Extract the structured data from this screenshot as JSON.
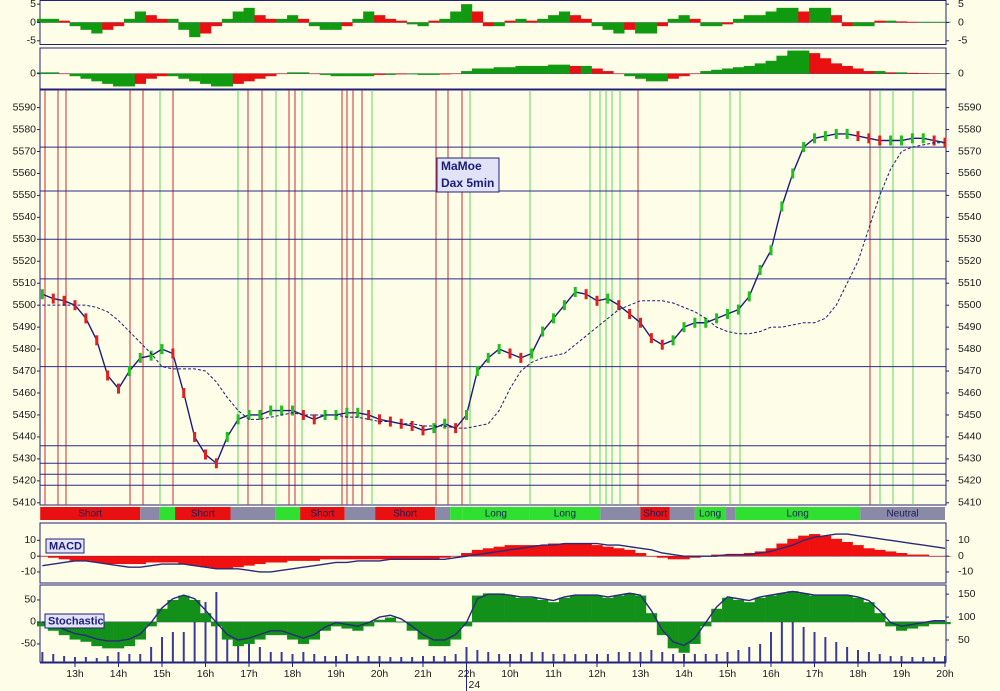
{
  "chart_data": [
    {
      "type": "bar",
      "ylim": [
        -6,
        6
      ],
      "yticks": [
        -5,
        0,
        5
      ],
      "series": [
        {
          "up_color": "#109a10",
          "down_color": "#e81010",
          "values": [
            1,
            1,
            0.5,
            -1,
            -2,
            -3,
            -2,
            -1,
            1,
            3,
            2,
            1,
            1,
            -2,
            -4,
            -3,
            -1,
            1,
            3,
            4,
            2,
            1,
            1,
            2,
            1,
            -1,
            -2,
            -2,
            -1,
            1,
            3,
            2,
            1,
            0.5,
            -0.5,
            -1,
            0.5,
            1,
            3,
            5,
            3,
            -1,
            -1,
            0.5,
            1,
            0.5,
            1,
            2,
            3,
            2,
            1,
            -1,
            -2,
            -3,
            -2,
            -3,
            -3,
            -1,
            1,
            2,
            1,
            -1,
            -1,
            -0.5,
            1,
            2,
            2,
            3,
            4,
            4,
            3,
            4,
            4,
            2,
            -1,
            -1,
            -1,
            0.5,
            0.5,
            0.3,
            0.2,
            0.2,
            0.2,
            0.2
          ]
        }
      ]
    },
    {
      "type": "bar",
      "ylim": [
        -6,
        10
      ],
      "yticks": [
        0
      ],
      "series": [
        {
          "up_color": "#109a10",
          "down_color": "#e81010",
          "values": [
            0.5,
            0.5,
            0,
            -1,
            -2,
            -3,
            -4,
            -5,
            -5,
            -4,
            -2,
            -1,
            -1,
            -2,
            -3,
            -4,
            -5,
            -5,
            -4,
            -3,
            -2,
            -1,
            0,
            0.5,
            0.5,
            0,
            -0.5,
            -1,
            -1,
            -1,
            -1,
            -0.5,
            -0.5,
            -0.3,
            -0.3,
            -0.5,
            -0.5,
            -0.3,
            0,
            1,
            2,
            2,
            2.5,
            2.5,
            3,
            3,
            3,
            3.5,
            3.5,
            3,
            3,
            2,
            1,
            0,
            -1,
            -2,
            -3,
            -3,
            -2,
            -1,
            0,
            1,
            1.5,
            2,
            2.5,
            3,
            4,
            5,
            7,
            9,
            9,
            8,
            6,
            4,
            3,
            2,
            1,
            1,
            0.5,
            0.5,
            0.3,
            0.2,
            0.1,
            0.1
          ]
        }
      ]
    },
    {
      "type": "line",
      "title": "MaMoe",
      "subtitle": "Dax 5min",
      "ylim": [
        5409,
        5598
      ],
      "yticks": [
        5410,
        5420,
        5430,
        5440,
        5450,
        5460,
        5470,
        5480,
        5490,
        5500,
        5510,
        5520,
        5530,
        5540,
        5550,
        5560,
        5570,
        5580,
        5590
      ],
      "levels": [
        5572,
        5552,
        5530,
        5512,
        5472,
        5436,
        5428,
        5423,
        5418
      ],
      "level_color": "#2a2a8a",
      "series": [
        {
          "color": "#1c1c7a",
          "up_color": "#20c020",
          "down_color": "#e02020",
          "markers": true,
          "values": [
            5505,
            5503,
            5502,
            5500,
            5494,
            5484,
            5468,
            5462,
            5470,
            5476,
            5477,
            5480,
            5478,
            5460,
            5440,
            5432,
            5428,
            5440,
            5448,
            5450,
            5450,
            5452,
            5452,
            5452,
            5450,
            5448,
            5450,
            5450,
            5451,
            5451,
            5450,
            5448,
            5447,
            5446,
            5445,
            5443,
            5444,
            5446,
            5444,
            5450,
            5470,
            5476,
            5480,
            5478,
            5476,
            5478,
            5488,
            5494,
            5500,
            5506,
            5505,
            5502,
            5503,
            5500,
            5496,
            5492,
            5485,
            5482,
            5484,
            5490,
            5492,
            5492,
            5494,
            5496,
            5498,
            5504,
            5516,
            5525,
            5545,
            5560,
            5572,
            5576,
            5577,
            5578,
            5578,
            5577,
            5576,
            5575,
            5575,
            5575,
            5576,
            5576,
            5575,
            5574
          ]
        },
        {
          "color": "#1c1c7a",
          "dash": true,
          "values": [
            5500,
            5500,
            5500,
            5500,
            5500,
            5499,
            5497,
            5493,
            5488,
            5483,
            5478,
            5472,
            5471,
            5471,
            5471,
            5470,
            5465,
            5458,
            5452,
            5448,
            5448,
            5449,
            5450,
            5451,
            5450,
            5450,
            5450,
            5450,
            5449,
            5449,
            5448,
            5447,
            5447,
            5446,
            5446,
            5445,
            5445,
            5445,
            5444,
            5444,
            5445,
            5446,
            5452,
            5462,
            5470,
            5474,
            5476,
            5477,
            5478,
            5482,
            5486,
            5490,
            5494,
            5498,
            5500,
            5502,
            5502,
            5502,
            5501,
            5499,
            5497,
            5494,
            5490,
            5488,
            5487,
            5487,
            5488,
            5490,
            5490,
            5491,
            5492,
            5492,
            5494,
            5500,
            5510,
            5520,
            5535,
            5550,
            5562,
            5570,
            5572,
            5573,
            5574,
            5574
          ]
        }
      ]
    },
    {
      "type": "band",
      "segments": [
        {
          "label": "Short",
          "color": "#e81010",
          "x": [
            -0.2,
            9.0
          ]
        },
        {
          "color": "#8a8aa8",
          "x": [
            9.0,
            10.8
          ]
        },
        {
          "color": "#30e030",
          "x": [
            10.8,
            12.2
          ]
        },
        {
          "label": "Short",
          "color": "#e81010",
          "x": [
            12.2,
            17.3
          ]
        },
        {
          "color": "#8a8aa8",
          "x": [
            17.3,
            21.4
          ]
        },
        {
          "color": "#30e030",
          "x": [
            21.4,
            23.7
          ]
        },
        {
          "label": "Short",
          "color": "#e81010",
          "x": [
            23.7,
            27.8
          ]
        },
        {
          "color": "#8a8aa8",
          "x": [
            27.8,
            30.6
          ]
        },
        {
          "label": "Short",
          "color": "#e81010",
          "x": [
            30.6,
            36.1
          ]
        },
        {
          "color": "#8a8aa8",
          "x": [
            36.1,
            37.5
          ]
        },
        {
          "color": "#30e030",
          "x": [
            37.5,
            38.6
          ]
        },
        {
          "label": "Long",
          "color": "#30e030",
          "x": [
            38.6,
            44.8
          ]
        },
        {
          "label": "Long",
          "color": "#30e030",
          "x": [
            44.8,
            51.3
          ]
        },
        {
          "color": "#8a8aa8",
          "x": [
            51.3,
            55.0
          ]
        },
        {
          "label": "Short",
          "color": "#e81010",
          "x": [
            55.0,
            57.7
          ]
        },
        {
          "color": "#8a8aa8",
          "x": [
            57.7,
            60.0
          ]
        },
        {
          "label": "Long",
          "color": "#30e030",
          "x": [
            60.0,
            62.8
          ]
        },
        {
          "color": "#8a8aa8",
          "x": [
            62.8,
            63.7
          ]
        },
        {
          "label": "Long",
          "color": "#30e030",
          "x": [
            63.7,
            75.2
          ]
        },
        {
          "label": "Neutral",
          "color": "#8a8aa8",
          "x": [
            75.2,
            83.0
          ]
        }
      ]
    },
    {
      "type": "bar",
      "title": "MACD",
      "ylim": [
        -17,
        21
      ],
      "yticks": [
        -10,
        0,
        10
      ],
      "series": [
        {
          "color": "#f01010",
          "values": [
            0,
            -1,
            -2,
            -3,
            -3,
            -4,
            -5,
            -5,
            -5,
            -5,
            -4,
            -4,
            -4,
            -5,
            -6,
            -7,
            -8,
            -8,
            -7,
            -6,
            -5,
            -4,
            -4,
            -3,
            -3,
            -3,
            -2,
            -2,
            -2,
            -2,
            -2,
            -2,
            -2,
            -2,
            -2,
            -2,
            -2,
            -1,
            0,
            2,
            4,
            5,
            6,
            7,
            7,
            7,
            7,
            8,
            8,
            8,
            8,
            7,
            6,
            5,
            4,
            2,
            0,
            -1,
            -2,
            -2,
            -1,
            0,
            1,
            1,
            1,
            2,
            3,
            5,
            8,
            11,
            13,
            14,
            13,
            11,
            9,
            7,
            5,
            4,
            3,
            2,
            1,
            1,
            0,
            0
          ]
        },
        {
          "type": "line",
          "color": "#2a2a7a",
          "values": [
            -6,
            -5,
            -4,
            -3,
            -3,
            -4,
            -5,
            -6,
            -7,
            -7,
            -6,
            -5,
            -5,
            -5,
            -6,
            -7,
            -8,
            -8,
            -8,
            -9,
            -10,
            -10,
            -9,
            -8,
            -7,
            -6,
            -5,
            -4,
            -4,
            -3,
            -3,
            -3,
            -2,
            -2,
            -2,
            -2,
            -2,
            -2,
            -1,
            0,
            1,
            2,
            3,
            4,
            5,
            6,
            7,
            7,
            8,
            8,
            8,
            8,
            7,
            7,
            6,
            5,
            4,
            2,
            1,
            0,
            0,
            0,
            0,
            1,
            1,
            1,
            2,
            3,
            5,
            7,
            10,
            12,
            13,
            14,
            14,
            13,
            12,
            11,
            10,
            9,
            8,
            7,
            6,
            5
          ]
        }
      ]
    },
    {
      "type": "volume",
      "color": "#3a3a9a",
      "values": [
        10,
        8,
        6,
        5,
        5,
        4,
        6,
        10,
        8,
        8,
        15,
        25,
        30,
        30,
        40,
        60,
        70,
        40,
        30,
        20,
        15,
        10,
        10,
        8,
        10,
        8,
        6,
        6,
        8,
        6,
        6,
        6,
        5,
        5,
        5,
        6,
        6,
        6,
        8,
        15,
        12,
        10,
        8,
        8,
        8,
        10,
        10,
        8,
        8,
        8,
        8,
        8,
        8,
        10,
        10,
        10,
        12,
        10,
        8,
        8,
        8,
        8,
        8,
        10,
        12,
        15,
        18,
        30,
        40,
        40,
        35,
        30,
        25,
        20,
        15,
        12,
        10,
        8,
        6,
        6,
        5,
        5,
        5,
        6
      ]
    },
    {
      "type": "bar",
      "title": "Stochastic",
      "ylim": [
        -91,
        84
      ],
      "yticks": [
        -50,
        0,
        50
      ],
      "y2lim": [
        2,
        170
      ],
      "y2ticks": [
        50,
        100,
        150
      ],
      "date_label": "24",
      "categories": [
        null,
        null,
        null,
        "13h",
        null,
        null,
        null,
        "14h",
        null,
        null,
        null,
        "15h",
        null,
        null,
        null,
        "16h",
        null,
        null,
        null,
        "17h",
        null,
        null,
        null,
        "18h",
        null,
        null,
        null,
        "19h",
        null,
        null,
        null,
        "20h",
        null,
        null,
        null,
        "21h",
        null,
        null,
        null,
        "22h",
        null,
        null,
        null,
        "10h",
        null,
        null,
        null,
        "11h",
        null,
        null,
        null,
        "12h",
        null,
        null,
        null,
        "13h",
        null,
        null,
        null,
        "14h",
        null,
        null,
        null,
        "15h",
        null,
        null,
        null,
        "16h",
        null,
        null,
        null,
        "17h",
        null,
        null,
        null,
        "18h",
        null,
        null,
        null,
        "19h",
        null,
        null,
        null,
        "20h"
      ],
      "series": [
        {
          "color": "#12901a",
          "values": [
            -10,
            -20,
            -30,
            -40,
            -45,
            -55,
            -60,
            -60,
            -55,
            -40,
            -10,
            30,
            50,
            60,
            50,
            20,
            -10,
            -40,
            -55,
            -50,
            -40,
            -30,
            -30,
            -40,
            -50,
            -40,
            -20,
            -10,
            -15,
            -20,
            -10,
            5,
            10,
            0,
            -20,
            -40,
            -55,
            -55,
            -40,
            -10,
            60,
            65,
            65,
            60,
            55,
            55,
            50,
            45,
            55,
            60,
            60,
            60,
            55,
            60,
            65,
            60,
            20,
            -30,
            -60,
            -70,
            -50,
            -10,
            30,
            55,
            50,
            45,
            55,
            60,
            65,
            70,
            65,
            60,
            60,
            60,
            60,
            55,
            45,
            20,
            -10,
            -20,
            -15,
            -10,
            -5,
            -5
          ]
        },
        {
          "type": "line",
          "axis": "y2",
          "color": "#2a2a7a",
          "values": [
            90,
            82,
            73,
            64,
            60,
            52,
            48,
            48,
            52,
            63,
            88,
            120,
            140,
            148,
            140,
            115,
            88,
            62,
            50,
            54,
            62,
            70,
            70,
            62,
            54,
            62,
            78,
            88,
            84,
            80,
            88,
            100,
            104,
            96,
            80,
            62,
            50,
            50,
            62,
            88,
            140,
            150,
            150,
            148,
            144,
            144,
            140,
            136,
            144,
            148,
            148,
            148,
            144,
            148,
            152,
            148,
            114,
            72,
            46,
            38,
            54,
            88,
            122,
            144,
            140,
            136,
            144,
            148,
            152,
            156,
            152,
            148,
            148,
            148,
            148,
            144,
            136,
            114,
            88,
            80,
            84,
            88,
            92,
            92
          ]
        }
      ]
    }
  ]
}
